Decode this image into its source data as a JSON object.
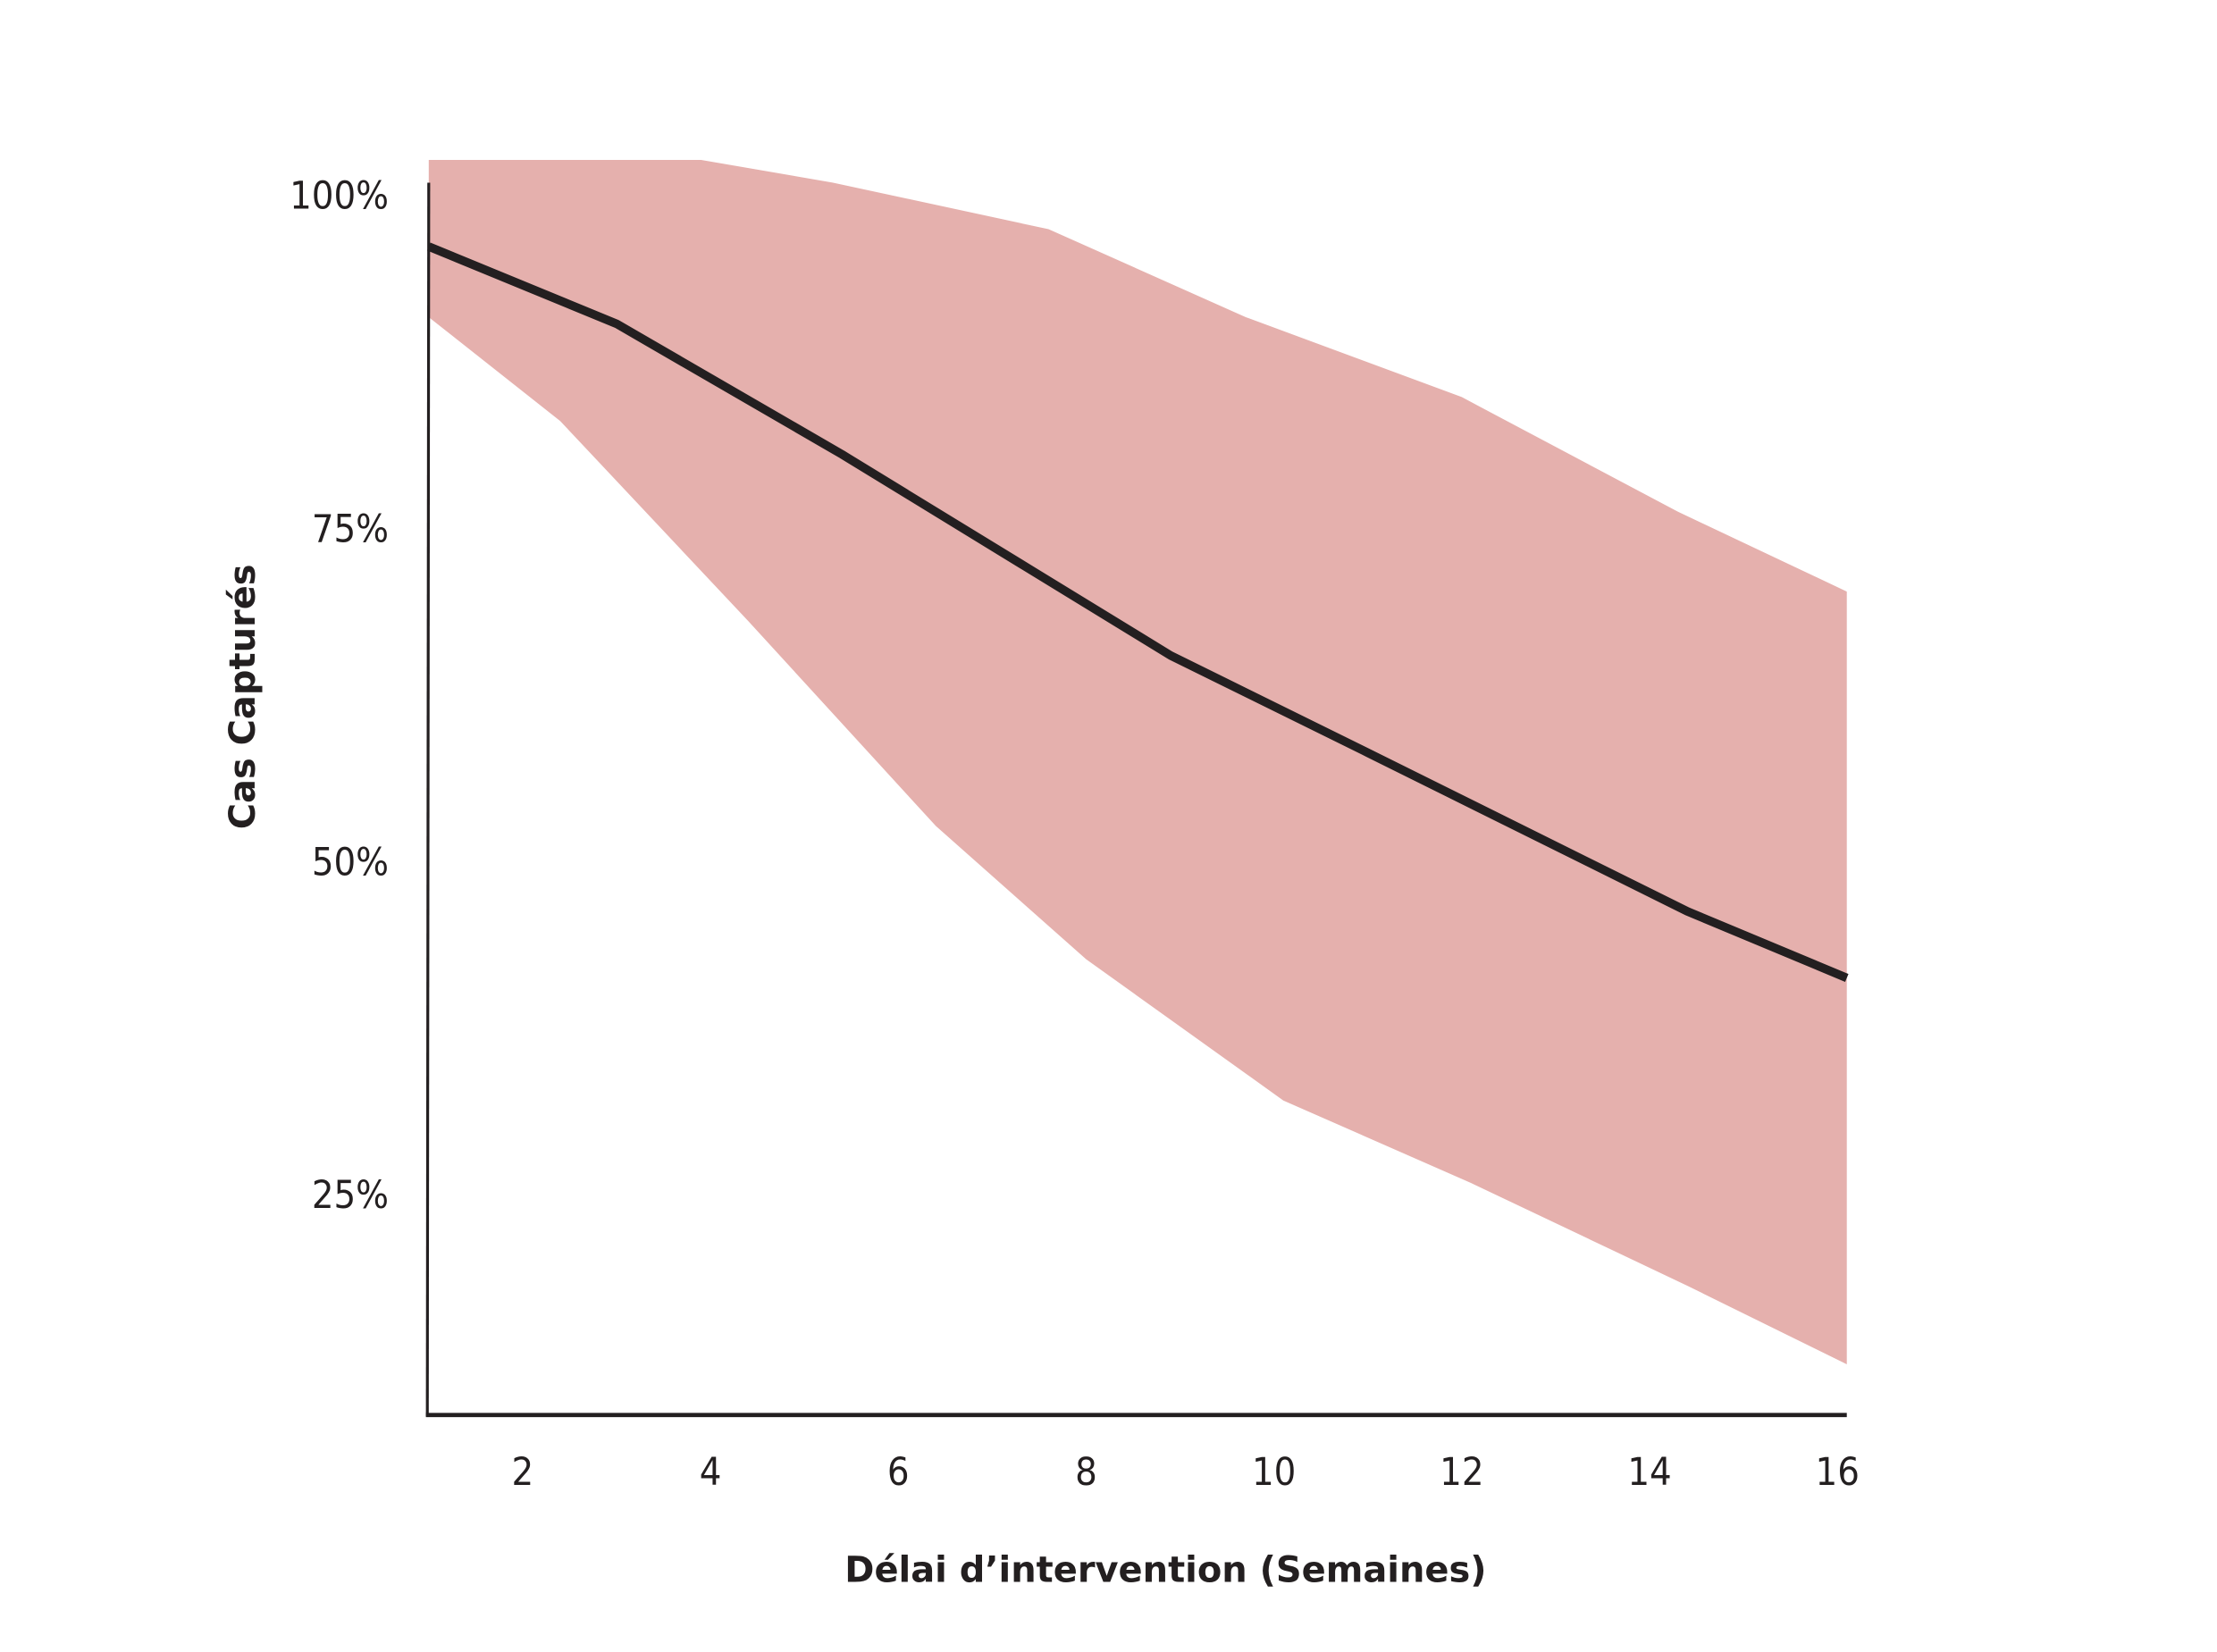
{
  "chart_data": {
    "type": "area",
    "xlabel": "Délai d’intervention (Semaines)",
    "ylabel": "Cas Capturés",
    "xlim": [
      1,
      16.1
    ],
    "ylim": [
      8.5,
      102.6
    ],
    "x_ticks": [
      {
        "value": 2,
        "label": "2"
      },
      {
        "value": 4,
        "label": "4"
      },
      {
        "value": 6,
        "label": "6"
      },
      {
        "value": 8,
        "label": "8"
      },
      {
        "value": 10,
        "label": "10"
      },
      {
        "value": 12,
        "label": "12"
      },
      {
        "value": 14,
        "label": "14"
      },
      {
        "value": 16,
        "label": "16"
      }
    ],
    "y_ticks": [
      {
        "value": 100,
        "label": "100%"
      },
      {
        "value": 75,
        "label": "75%"
      },
      {
        "value": 50,
        "label": "50%"
      },
      {
        "value": 25,
        "label": "25%"
      }
    ],
    "grid": false,
    "colors": {
      "band": "#e5b0ad",
      "line": "#231f20",
      "axis": "#231f20"
    },
    "series": [
      {
        "kind": "line",
        "points": [
          [
            1,
            96.1
          ],
          [
            3.0,
            90.3
          ],
          [
            5.4,
            80.5
          ],
          [
            8.9,
            65.4
          ],
          [
            11.0,
            58.1
          ],
          [
            14.4,
            46.2
          ],
          [
            16.1,
            41.2
          ]
        ]
      },
      {
        "kind": "band",
        "upper": [
          [
            1,
            102.6
          ],
          [
            3.9,
            102.6
          ],
          [
            5.3,
            100.9
          ],
          [
            7.6,
            97.4
          ],
          [
            9.7,
            90.8
          ],
          [
            12.0,
            84.8
          ],
          [
            14.3,
            76.2
          ],
          [
            16.1,
            70.2
          ]
        ],
        "lower": [
          [
            1,
            90.8
          ],
          [
            2.4,
            83.0
          ],
          [
            4.4,
            68.0
          ],
          [
            6.4,
            52.6
          ],
          [
            8.0,
            42.6
          ],
          [
            10.1,
            32.0
          ],
          [
            12.1,
            25.8
          ],
          [
            14.4,
            18.1
          ],
          [
            16.1,
            12.2
          ]
        ]
      }
    ]
  }
}
